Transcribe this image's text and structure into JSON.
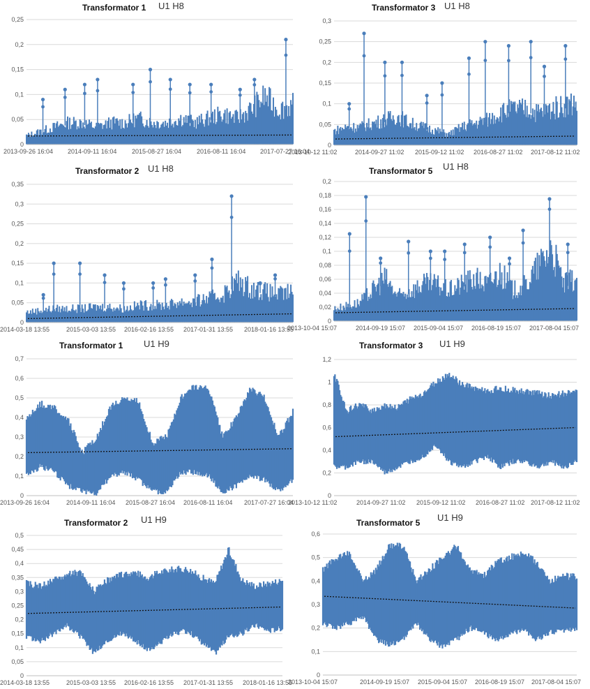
{
  "chart_data": [
    {
      "type": "scatter",
      "title": "Transformator 1",
      "subtitle": "U1 H8",
      "ylim": [
        0,
        0.25
      ],
      "yticks": [
        "0",
        "0,05",
        "0,1",
        "0,15",
        "0,2",
        "0,25"
      ],
      "yvalues": [
        0,
        0.05,
        0.1,
        0.15,
        0.2,
        0.25
      ],
      "xticks": [
        "2013-09-26 16:04",
        "2014-09-11 16:04",
        "2015-08-27 16:04",
        "2016-08-11 16:04",
        "2017-07-27 16:04"
      ],
      "series": [
        {
          "values": [
            0.02,
            0.03,
            0.04,
            0.05,
            0.05,
            0.04,
            0.05,
            0.05,
            0.06,
            0.05,
            0.05,
            0.06,
            0.05,
            0.06,
            0.07,
            0.06,
            0.08,
            0.11,
            0.08,
            0.09
          ],
          "spikes": [
            0.09,
            0.11,
            0.12,
            0.13,
            0.12,
            0.15,
            0.13,
            0.12,
            0.12,
            0.11,
            0.13,
            0.21
          ]
        },
        {
          "values": [
            0.017,
            0.019
          ]
        }
      ],
      "grid": true
    },
    {
      "type": "scatter",
      "title": "Transformator 3",
      "subtitle": "U1 H8",
      "ylim": [
        0,
        0.3
      ],
      "yticks": [
        "0",
        "0,05",
        "0,1",
        "0,15",
        "0,2",
        "0,25",
        "0,3"
      ],
      "yvalues": [
        0,
        0.05,
        0.1,
        0.15,
        0.2,
        0.25,
        0.3
      ],
      "xticks": [
        "2013-10-12 11:02",
        "2014-09-27 11:02",
        "2015-09-12 11:02",
        "2016-08-27 11:02",
        "2017-08-12 11:02"
      ],
      "series": [
        {
          "values": [
            0.04,
            0.05,
            0.05,
            0.06,
            0.07,
            0.08,
            0.06,
            0.05,
            0.04,
            0.03,
            0.05,
            0.06,
            0.07,
            0.09,
            0.1,
            0.1,
            0.09,
            0.1,
            0.11,
            0.12
          ],
          "spikes": [
            0.1,
            0.27,
            0.2,
            0.2,
            0.12,
            0.15,
            0.21,
            0.25,
            0.24,
            0.25,
            0.19,
            0.24
          ]
        },
        {
          "values": [
            0.015,
            0.022
          ]
        }
      ],
      "grid": true
    },
    {
      "type": "scatter",
      "title": "Transformator 2",
      "subtitle": "U1 H8",
      "ylim": [
        0,
        0.35
      ],
      "yticks": [
        "0",
        "0,05",
        "0,1",
        "0,15",
        "0,2",
        "0,25",
        "0,3",
        "0,35"
      ],
      "yvalues": [
        0,
        0.05,
        0.1,
        0.15,
        0.2,
        0.25,
        0.3,
        0.35
      ],
      "xticks": [
        "2014-03-18 13:55",
        "2015-03-03 13:55",
        "2016-02-16 13:55",
        "2017-01-31 13:55",
        "2018-01-16 13:55"
      ],
      "series": [
        {
          "values": [
            0.03,
            0.035,
            0.04,
            0.04,
            0.04,
            0.045,
            0.045,
            0.04,
            0.05,
            0.05,
            0.05,
            0.06,
            0.06,
            0.07,
            0.08,
            0.12,
            0.1,
            0.09,
            0.08,
            0.09
          ],
          "spikes": [
            0.07,
            0.15,
            0.15,
            0.12,
            0.1,
            0.1,
            0.11,
            0.12,
            0.16,
            0.32,
            0.1,
            0.12
          ]
        },
        {
          "values": [
            0.01,
            0.022
          ]
        }
      ],
      "grid": true
    },
    {
      "type": "scatter",
      "title": "Transformator 5",
      "subtitle": "U1 H8",
      "ylim": [
        0,
        0.2
      ],
      "yticks": [
        "0",
        "0,02",
        "0,04",
        "0,06",
        "0,08",
        "0,1",
        "0,12",
        "0,14",
        "0,16",
        "0,18",
        "0,2"
      ],
      "yvalues": [
        0,
        0.02,
        0.04,
        0.06,
        0.08,
        0.1,
        0.12,
        0.14,
        0.16,
        0.18,
        0.2
      ],
      "xticks": [
        "2013-10-04 15:07",
        "2014-09-19 15:07",
        "2015-09-04 15:07",
        "2016-08-19 15:07",
        "2017-08-04 15:07"
      ],
      "series": [
        {
          "values": [
            0.02,
            0.025,
            0.03,
            0.05,
            0.07,
            0.04,
            0.05,
            0.06,
            0.06,
            0.05,
            0.06,
            0.07,
            0.06,
            0.08,
            0.05,
            0.06,
            0.09,
            0.12,
            0.06,
            0.07
          ],
          "spikes": [
            0.125,
            0.178,
            0.09,
            0.114,
            0.1,
            0.1,
            0.11,
            0.12,
            0.09,
            0.13,
            0.175,
            0.11
          ]
        },
        {
          "values": [
            0.012,
            0.018
          ]
        }
      ],
      "grid": true
    },
    {
      "type": "scatter",
      "title": "Transformator 1",
      "subtitle": "U1 H9",
      "ylim": [
        0,
        0.7
      ],
      "yticks": [
        "0",
        "0,1",
        "0,2",
        "0,3",
        "0,4",
        "0,5",
        "0,6",
        "0,7"
      ],
      "yvalues": [
        0,
        0.1,
        0.2,
        0.3,
        0.4,
        0.5,
        0.6,
        0.7
      ],
      "xticks": [
        "2013-09-26 16:04",
        "2014-09-11 16:04",
        "2015-08-27 16:04",
        "2016-08-11 16:04",
        "2017-07-27 16:04"
      ],
      "series": [
        {
          "upper": [
            0.4,
            0.47,
            0.45,
            0.38,
            0.22,
            0.3,
            0.45,
            0.5,
            0.48,
            0.27,
            0.3,
            0.5,
            0.56,
            0.55,
            0.3,
            0.4,
            0.55,
            0.5,
            0.3,
            0.43
          ],
          "lower": [
            0.1,
            0.15,
            0.12,
            0.05,
            0.02,
            0.01,
            0.1,
            0.12,
            0.08,
            0.02,
            0.02,
            0.12,
            0.12,
            0.1,
            0.02,
            0.05,
            0.1,
            0.08,
            0.02,
            0.08
          ]
        },
        {
          "values": [
            0.22,
            0.24
          ]
        }
      ],
      "grid": true
    },
    {
      "type": "scatter",
      "title": "Transformator 3",
      "subtitle": "U1 H9",
      "ylim": [
        0,
        1.2
      ],
      "yticks": [
        "0",
        "0,2",
        "0,4",
        "0,6",
        "0,8",
        "1",
        "1,2"
      ],
      "yvalues": [
        0,
        0.2,
        0.4,
        0.6,
        0.8,
        1.0,
        1.2
      ],
      "xticks": [
        "2013-10-12 11:02",
        "2014-09-27 11:02",
        "2015-09-12 11:02",
        "2016-08-27 11:02",
        "2017-08-12 11:02"
      ],
      "series": [
        {
          "upper": [
            1.08,
            0.75,
            0.8,
            0.75,
            0.8,
            0.78,
            0.85,
            0.9,
            1.0,
            1.07,
            0.98,
            0.95,
            0.92,
            0.95,
            0.93,
            0.92,
            0.9,
            0.88,
            0.9,
            0.92
          ],
          "lower": [
            0.25,
            0.25,
            0.3,
            0.3,
            0.2,
            0.25,
            0.3,
            0.35,
            0.45,
            0.3,
            0.25,
            0.3,
            0.35,
            0.25,
            0.3,
            0.3,
            0.25,
            0.3,
            0.25,
            0.3
          ]
        },
        {
          "values": [
            0.52,
            0.6
          ]
        }
      ],
      "grid": true
    },
    {
      "type": "scatter",
      "title": "Transformator 2",
      "subtitle": "U1 H9",
      "ylim": [
        0,
        0.5
      ],
      "yticks": [
        "0",
        "0,05",
        "0,1",
        "0,15",
        "0,2",
        "0,25",
        "0,3",
        "0,35",
        "0,4",
        "0,45",
        "0,5"
      ],
      "yvalues": [
        0,
        0.05,
        0.1,
        0.15,
        0.2,
        0.25,
        0.3,
        0.35,
        0.4,
        0.45,
        0.5
      ],
      "xticks": [
        "2014-03-18 13:55",
        "2015-03-03 13:55",
        "2016-02-16 13:55",
        "2017-01-31 13:55",
        "2018-01-16 13:55"
      ],
      "series": [
        {
          "upper": [
            0.33,
            0.32,
            0.34,
            0.36,
            0.37,
            0.3,
            0.34,
            0.36,
            0.37,
            0.35,
            0.37,
            0.38,
            0.38,
            0.35,
            0.33,
            0.45,
            0.34,
            0.32,
            0.33,
            0.34
          ],
          "lower": [
            0.14,
            0.12,
            0.15,
            0.18,
            0.14,
            0.08,
            0.12,
            0.15,
            0.13,
            0.09,
            0.12,
            0.15,
            0.16,
            0.12,
            0.08,
            0.14,
            0.15,
            0.18,
            0.16,
            0.17
          ]
        },
        {
          "values": [
            0.222,
            0.245
          ]
        }
      ],
      "grid": true
    },
    {
      "type": "scatter",
      "title": "Transformator 5",
      "subtitle": "U1 H9",
      "ylim": [
        0,
        0.6
      ],
      "yticks": [
        "0",
        "0,1",
        "0,2",
        "0,3",
        "0,4",
        "0,5",
        "0,6"
      ],
      "yvalues": [
        0,
        0.1,
        0.2,
        0.3,
        0.4,
        0.5,
        0.6
      ],
      "xticks": [
        "2013-10-04 15:07",
        "2014-09-19 15:07",
        "2015-09-04 15:07",
        "2016-08-19 15:07",
        "2017-08-04 15:07"
      ],
      "series": [
        {
          "upper": [
            0.45,
            0.5,
            0.52,
            0.4,
            0.45,
            0.55,
            0.55,
            0.4,
            0.45,
            0.5,
            0.55,
            0.45,
            0.42,
            0.48,
            0.5,
            0.52,
            0.48,
            0.4,
            0.42,
            0.42
          ],
          "lower": [
            0.22,
            0.2,
            0.22,
            0.25,
            0.15,
            0.13,
            0.15,
            0.22,
            0.15,
            0.12,
            0.15,
            0.2,
            0.18,
            0.15,
            0.17,
            0.2,
            0.15,
            0.18,
            0.19,
            0.2
          ]
        },
        {
          "values": [
            0.335,
            0.285
          ]
        }
      ],
      "grid": true
    }
  ],
  "colors": {
    "series": "#4a7ebb",
    "trend": "#111111",
    "grid": "#d9d9d9",
    "axis": "#bfbfbf"
  }
}
